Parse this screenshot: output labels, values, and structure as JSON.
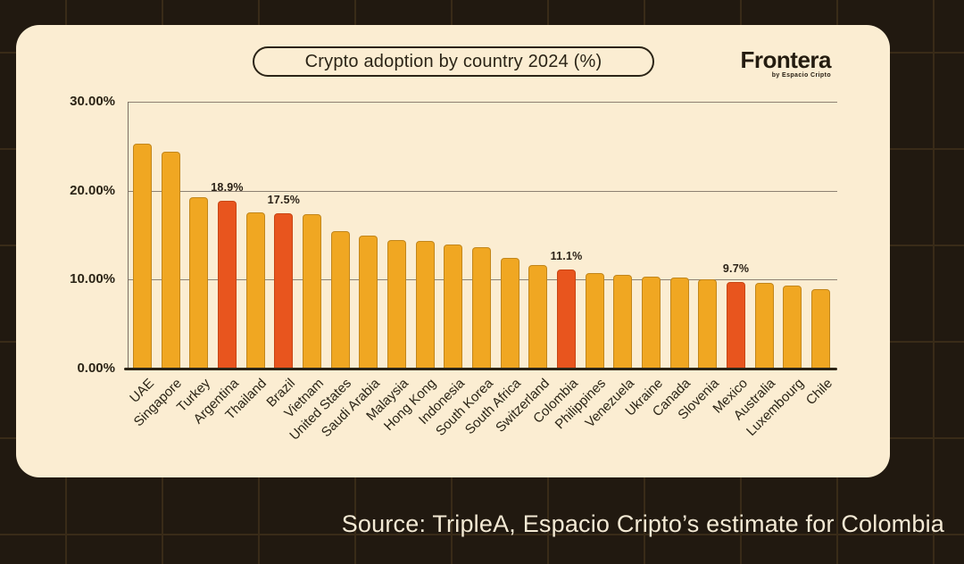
{
  "header": {
    "title": "Crypto adoption by country 2024 (%)",
    "brand": {
      "name": "Frontera",
      "tagline": "by Espacio Cripto"
    }
  },
  "footer": {
    "source": "Source: TripleA, Espacio Cripto’s estimate for Colombia"
  },
  "colors": {
    "page_background": "#211910",
    "card_background": "#FBEDD2",
    "bar_default": "#F0A722",
    "bar_highlight": "#E8551E",
    "text_dark": "#2B2416",
    "gridline": "#8D8172",
    "source_text": "#F3E9D4"
  },
  "chart_data": {
    "type": "bar",
    "title": "Crypto adoption by country 2024 (%)",
    "ylabel": "",
    "xlabel": "",
    "ylim": [
      0,
      30
    ],
    "grid": true,
    "yticks": [
      {
        "value": 30,
        "label": "30.00%"
      },
      {
        "value": 20,
        "label": "20.00%"
      },
      {
        "value": 10,
        "label": "10.00%"
      },
      {
        "value": 0,
        "label": "0.00%"
      }
    ],
    "bars": [
      {
        "country": "UAE",
        "value": 25.3,
        "highlighted": false,
        "data_label": null
      },
      {
        "country": "Singapore",
        "value": 24.4,
        "highlighted": false,
        "data_label": null
      },
      {
        "country": "Turkey",
        "value": 19.3,
        "highlighted": false,
        "data_label": null
      },
      {
        "country": "Argentina",
        "value": 18.9,
        "highlighted": true,
        "data_label": "18.9%"
      },
      {
        "country": "Thailand",
        "value": 17.6,
        "highlighted": false,
        "data_label": null
      },
      {
        "country": "Brazil",
        "value": 17.5,
        "highlighted": true,
        "data_label": "17.5%"
      },
      {
        "country": "Vietnam",
        "value": 17.4,
        "highlighted": false,
        "data_label": null
      },
      {
        "country": "United States",
        "value": 15.5,
        "highlighted": false,
        "data_label": null
      },
      {
        "country": "Saudi Arabia",
        "value": 15.0,
        "highlighted": false,
        "data_label": null
      },
      {
        "country": "Malaysia",
        "value": 14.4,
        "highlighted": false,
        "data_label": null
      },
      {
        "country": "Hong Kong",
        "value": 14.3,
        "highlighted": false,
        "data_label": null
      },
      {
        "country": "Indonesia",
        "value": 13.9,
        "highlighted": false,
        "data_label": null
      },
      {
        "country": "South Korea",
        "value": 13.6,
        "highlighted": false,
        "data_label": null
      },
      {
        "country": "South Africa",
        "value": 12.4,
        "highlighted": false,
        "data_label": null
      },
      {
        "country": "Switzerland",
        "value": 11.6,
        "highlighted": false,
        "data_label": null
      },
      {
        "country": "Colombia",
        "value": 11.1,
        "highlighted": true,
        "data_label": "11.1%"
      },
      {
        "country": "Philippines",
        "value": 10.7,
        "highlighted": false,
        "data_label": null
      },
      {
        "country": "Venezuela",
        "value": 10.5,
        "highlighted": false,
        "data_label": null
      },
      {
        "country": "Ukraine",
        "value": 10.3,
        "highlighted": false,
        "data_label": null
      },
      {
        "country": "Canada",
        "value": 10.2,
        "highlighted": false,
        "data_label": null
      },
      {
        "country": "Slovenia",
        "value": 10.0,
        "highlighted": false,
        "data_label": null
      },
      {
        "country": "Mexico",
        "value": 9.7,
        "highlighted": true,
        "data_label": "9.7%"
      },
      {
        "country": "Australia",
        "value": 9.6,
        "highlighted": false,
        "data_label": null
      },
      {
        "country": "Luxembourg",
        "value": 9.3,
        "highlighted": false,
        "data_label": null
      },
      {
        "country": "Chile",
        "value": 8.9,
        "highlighted": false,
        "data_label": null
      }
    ]
  }
}
